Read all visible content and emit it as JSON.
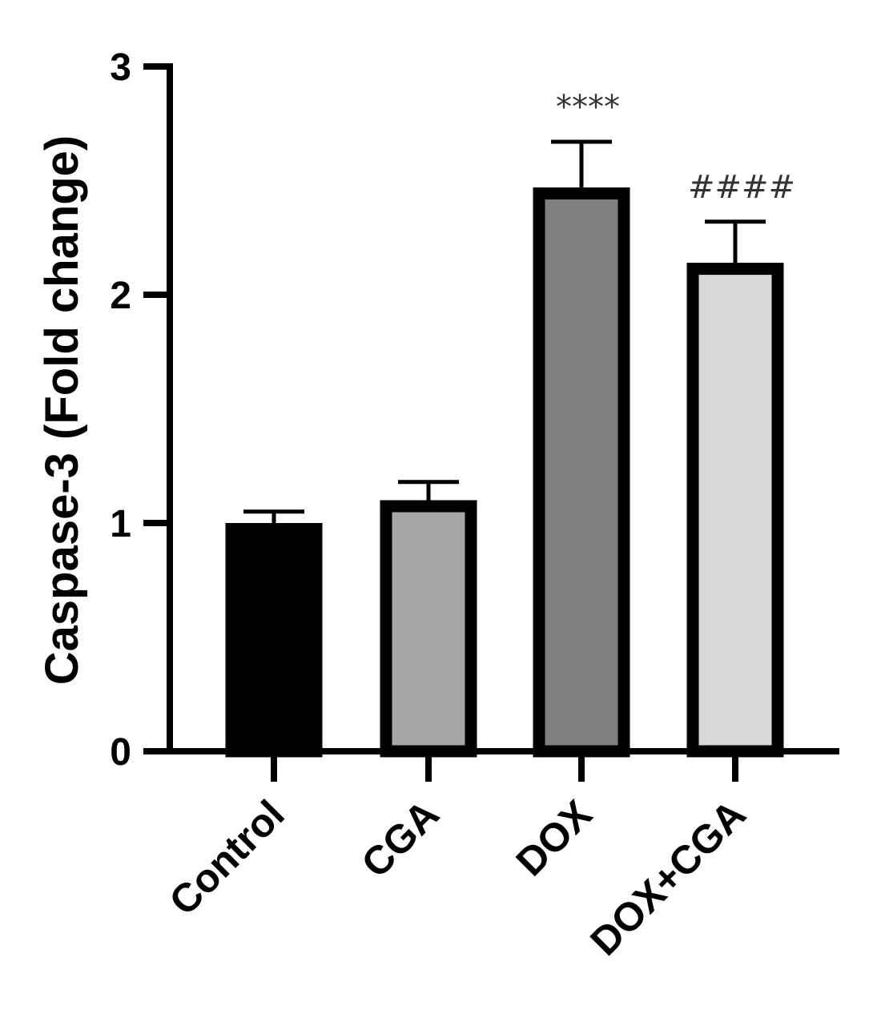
{
  "chart_data": {
    "type": "bar",
    "title": "",
    "xlabel": "",
    "ylabel": "Caspase-3 (Fold change)",
    "ylim": [
      0,
      3
    ],
    "yticks": [
      0,
      1,
      2,
      3
    ],
    "categories": [
      "Control",
      "CGA",
      "DOX",
      "DOX+CGA"
    ],
    "values": [
      1.0,
      1.1,
      2.47,
      2.14
    ],
    "errors": [
      0.05,
      0.08,
      0.2,
      0.18
    ],
    "bar_colors": [
      "#000000",
      "#a6a6a8",
      "#7f7f7f",
      "#d8d8d8"
    ],
    "annotations": [
      {
        "category": "DOX",
        "text": "****"
      },
      {
        "category": "DOX+CGA",
        "text": "####"
      }
    ],
    "grid": false,
    "legend": "none"
  }
}
